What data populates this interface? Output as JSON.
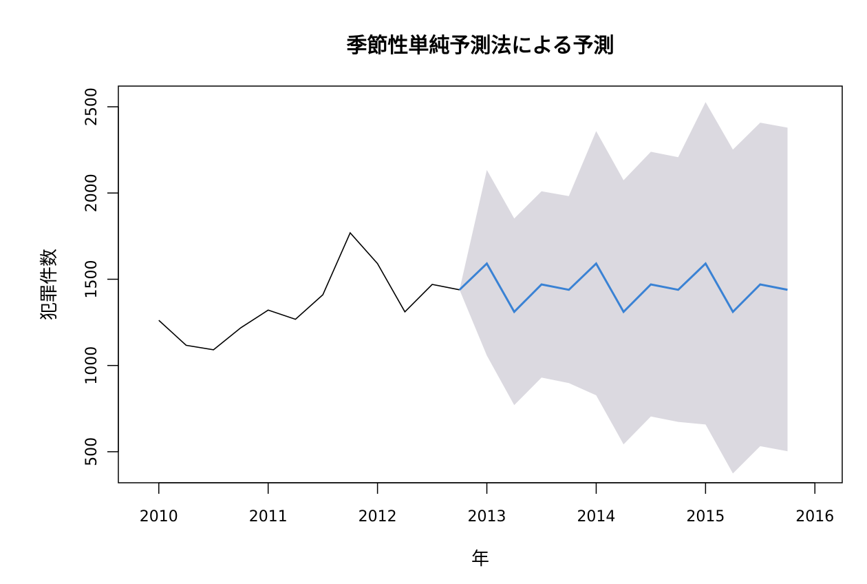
{
  "chart_data": {
    "type": "line",
    "title": "季節性単純予測法による予測",
    "xlabel": "年",
    "ylabel": "犯罪件数",
    "xlim": [
      2009.63,
      2016.25
    ],
    "ylim": [
      320,
      2620
    ],
    "x_ticks": [
      2010,
      2011,
      2012,
      2013,
      2014,
      2015,
      2016
    ],
    "y_ticks": [
      500,
      1000,
      1500,
      2000,
      2500
    ],
    "grid": false,
    "legend": "none",
    "colors": {
      "observed": "#000000",
      "forecast": "#3a82d4",
      "interval": "#dbd9e0"
    },
    "series": [
      {
        "x": [
          2010.0,
          2010.25,
          2010.5,
          2010.75,
          2011.0,
          2011.25,
          2011.5,
          2011.75,
          2012.0,
          2012.25,
          2012.5,
          2012.75
        ],
        "values": [
          1262,
          1117,
          1091,
          1219,
          1321,
          1268,
          1410,
          1769,
          1591,
          1311,
          1470,
          1439
        ]
      },
      {
        "x": [
          2012.75,
          2013.0,
          2013.25,
          2013.5,
          2013.75,
          2014.0,
          2014.25,
          2014.5,
          2014.75,
          2015.0,
          2015.25,
          2015.5,
          2015.75
        ],
        "values": [
          1439,
          1591,
          1311,
          1470,
          1439,
          1591,
          1311,
          1470,
          1439,
          1591,
          1311,
          1470,
          1439
        ]
      }
    ],
    "interval": {
      "x": [
        2012.75,
        2013.0,
        2013.25,
        2013.5,
        2013.75,
        2014.0,
        2014.25,
        2014.5,
        2014.75,
        2015.0,
        2015.25,
        2015.5,
        2015.75
      ],
      "lower": [
        1439,
        1058,
        770,
        930,
        898,
        827,
        543,
        704,
        673,
        658,
        374,
        532,
        503
      ],
      "upper": [
        1439,
        2134,
        1852,
        2010,
        1982,
        2359,
        2074,
        2239,
        2208,
        2527,
        2252,
        2408,
        2379
      ]
    }
  }
}
